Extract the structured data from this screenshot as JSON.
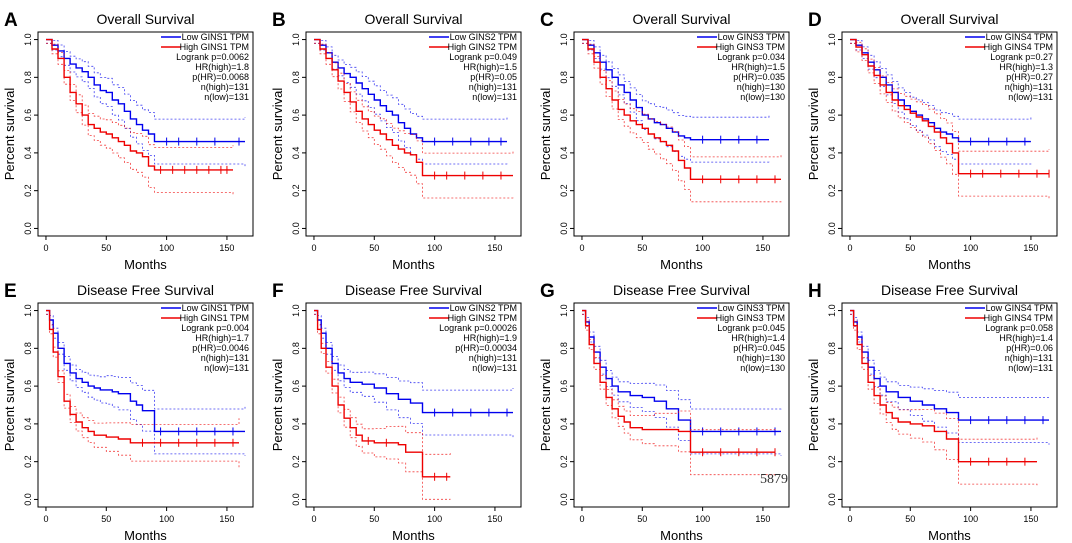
{
  "figure": {
    "watermark": "5879",
    "colors": {
      "low": "#0000ee",
      "high": "#ee0000",
      "axis": "#000000"
    }
  },
  "chart_data": [
    {
      "panel": "A",
      "type": "line",
      "title": "Overall Survival",
      "xlabel": "Months",
      "ylabel": "Percent survival",
      "xlim": [
        0,
        165
      ],
      "ylim": [
        0,
        1.0
      ],
      "xticks": [
        0,
        50,
        100,
        150
      ],
      "yticks": [
        0,
        0.2,
        0.4,
        0.6,
        0.8,
        1.0
      ],
      "legend": [
        "Low GINS1 TPM",
        "High GINS1 TPM"
      ],
      "stats": [
        "Logrank p=0.0062",
        "HR(high)=1.8",
        "p(HR)=0.0068",
        "n(high)=131",
        "n(low)=131"
      ],
      "series": [
        {
          "name": "Low GINS1 TPM",
          "color": "low",
          "x": [
            0,
            5,
            10,
            15,
            20,
            25,
            30,
            35,
            40,
            45,
            50,
            55,
            60,
            65,
            70,
            75,
            80,
            85,
            90,
            165
          ],
          "y": [
            1.0,
            0.97,
            0.94,
            0.9,
            0.87,
            0.85,
            0.83,
            0.8,
            0.76,
            0.73,
            0.72,
            0.68,
            0.66,
            0.62,
            0.58,
            0.55,
            0.52,
            0.5,
            0.46,
            0.46
          ],
          "censor": [
            100,
            110,
            125,
            140,
            160
          ]
        },
        {
          "name": "High GINS1 TPM",
          "color": "high",
          "x": [
            0,
            5,
            10,
            15,
            20,
            25,
            30,
            35,
            40,
            45,
            50,
            55,
            60,
            65,
            70,
            75,
            80,
            85,
            90,
            155
          ],
          "y": [
            1.0,
            0.95,
            0.9,
            0.8,
            0.72,
            0.66,
            0.6,
            0.55,
            0.53,
            0.51,
            0.5,
            0.48,
            0.46,
            0.44,
            0.41,
            0.4,
            0.38,
            0.33,
            0.31,
            0.31
          ],
          "censor": [
            95,
            105,
            115,
            125,
            135,
            145,
            150
          ]
        }
      ]
    },
    {
      "panel": "B",
      "type": "line",
      "title": "Overall Survival",
      "xlabel": "Months",
      "ylabel": "Percent survival",
      "xlim": [
        0,
        165
      ],
      "ylim": [
        0,
        1.0
      ],
      "xticks": [
        0,
        50,
        100,
        150
      ],
      "yticks": [
        0,
        0.2,
        0.4,
        0.6,
        0.8,
        1.0
      ],
      "legend": [
        "Low GINS2 TPM",
        "High GINS2 TPM"
      ],
      "stats": [
        "Logrank p=0.049",
        "HR(high)=1.5",
        "p(HR)=0.05",
        "n(high)=131",
        "n(low)=131"
      ],
      "series": [
        {
          "name": "Low GINS2 TPM",
          "color": "low",
          "x": [
            0,
            5,
            10,
            15,
            20,
            25,
            30,
            35,
            40,
            45,
            50,
            55,
            60,
            65,
            70,
            75,
            80,
            85,
            90,
            160
          ],
          "y": [
            1.0,
            0.97,
            0.93,
            0.88,
            0.85,
            0.82,
            0.8,
            0.77,
            0.74,
            0.71,
            0.68,
            0.65,
            0.62,
            0.6,
            0.56,
            0.53,
            0.5,
            0.48,
            0.46,
            0.46
          ],
          "censor": [
            100,
            115,
            130,
            145,
            155
          ]
        },
        {
          "name": "High GINS2 TPM",
          "color": "high",
          "x": [
            0,
            5,
            10,
            15,
            20,
            25,
            30,
            35,
            40,
            45,
            50,
            55,
            60,
            65,
            70,
            75,
            80,
            85,
            90,
            165
          ],
          "y": [
            1.0,
            0.95,
            0.9,
            0.84,
            0.78,
            0.72,
            0.67,
            0.62,
            0.58,
            0.55,
            0.52,
            0.5,
            0.47,
            0.44,
            0.42,
            0.4,
            0.39,
            0.35,
            0.28,
            0.28
          ],
          "censor": [
            100,
            110,
            125,
            140,
            155
          ]
        }
      ]
    },
    {
      "panel": "C",
      "type": "line",
      "title": "Overall Survival",
      "xlabel": "Months",
      "ylabel": "Percent survival",
      "xlim": [
        0,
        165
      ],
      "ylim": [
        0,
        1.0
      ],
      "xticks": [
        0,
        50,
        100,
        150
      ],
      "yticks": [
        0,
        0.2,
        0.4,
        0.6,
        0.8,
        1.0
      ],
      "legend": [
        "Low GINS3 TPM",
        "High GINS3 TPM"
      ],
      "stats": [
        "Logrank p=0.034",
        "HR(high)=1.5",
        "p(HR)=0.035",
        "n(high)=130",
        "n(low)=130"
      ],
      "series": [
        {
          "name": "Low GINS3 TPM",
          "color": "low",
          "x": [
            0,
            5,
            10,
            15,
            20,
            25,
            30,
            35,
            40,
            45,
            50,
            55,
            60,
            65,
            70,
            75,
            80,
            85,
            90,
            155
          ],
          "y": [
            1.0,
            0.97,
            0.93,
            0.88,
            0.84,
            0.8,
            0.76,
            0.72,
            0.68,
            0.64,
            0.6,
            0.58,
            0.56,
            0.55,
            0.53,
            0.51,
            0.49,
            0.48,
            0.47,
            0.47
          ],
          "censor": [
            100,
            115,
            130,
            145
          ]
        },
        {
          "name": "High GINS3 TPM",
          "color": "high",
          "x": [
            0,
            5,
            10,
            15,
            20,
            25,
            30,
            35,
            40,
            45,
            50,
            55,
            60,
            65,
            70,
            75,
            80,
            85,
            90,
            165
          ],
          "y": [
            1.0,
            0.95,
            0.88,
            0.8,
            0.74,
            0.68,
            0.63,
            0.6,
            0.57,
            0.55,
            0.53,
            0.5,
            0.48,
            0.46,
            0.44,
            0.41,
            0.36,
            0.32,
            0.26,
            0.26
          ],
          "censor": [
            100,
            115,
            130,
            145,
            160
          ]
        }
      ]
    },
    {
      "panel": "D",
      "type": "line",
      "title": "Overall Survival",
      "xlabel": "Months",
      "ylabel": "Percent survival",
      "xlim": [
        0,
        165
      ],
      "ylim": [
        0,
        1.0
      ],
      "xticks": [
        0,
        50,
        100,
        150
      ],
      "yticks": [
        0,
        0.2,
        0.4,
        0.6,
        0.8,
        1.0
      ],
      "legend": [
        "Low GINS4 TPM",
        "High GINS4 TPM"
      ],
      "stats": [
        "Logrank p=0.27",
        "HR(high)=1.3",
        "p(HR)=0.27",
        "n(high)=131",
        "n(low)=131"
      ],
      "series": [
        {
          "name": "Low GINS4 TPM",
          "color": "low",
          "x": [
            0,
            5,
            10,
            15,
            20,
            25,
            30,
            35,
            40,
            45,
            50,
            55,
            60,
            65,
            70,
            75,
            80,
            85,
            90,
            150
          ],
          "y": [
            1.0,
            0.97,
            0.93,
            0.88,
            0.84,
            0.8,
            0.76,
            0.72,
            0.68,
            0.65,
            0.62,
            0.6,
            0.58,
            0.56,
            0.53,
            0.51,
            0.5,
            0.48,
            0.46,
            0.46
          ],
          "censor": [
            100,
            115,
            130,
            145
          ]
        },
        {
          "name": "High GINS4 TPM",
          "color": "high",
          "x": [
            0,
            5,
            10,
            15,
            20,
            25,
            30,
            35,
            40,
            45,
            50,
            55,
            60,
            65,
            70,
            75,
            80,
            85,
            90,
            165
          ],
          "y": [
            1.0,
            0.96,
            0.92,
            0.86,
            0.81,
            0.76,
            0.72,
            0.68,
            0.65,
            0.63,
            0.61,
            0.59,
            0.57,
            0.54,
            0.51,
            0.48,
            0.45,
            0.4,
            0.29,
            0.29
          ],
          "censor": [
            100,
            110,
            125,
            140,
            155,
            165
          ]
        }
      ]
    },
    {
      "panel": "E",
      "type": "line",
      "title": "Disease Free Survival",
      "xlabel": "Months",
      "ylabel": "Percent survival",
      "xlim": [
        0,
        165
      ],
      "ylim": [
        0,
        1.0
      ],
      "xticks": [
        0,
        50,
        100,
        150
      ],
      "yticks": [
        0,
        0.2,
        0.4,
        0.6,
        0.8,
        1.0
      ],
      "legend": [
        "Low GINS1 TPM",
        "High GINS1 TPM"
      ],
      "stats": [
        "Logrank p=0.004",
        "HR(high)=1.7",
        "p(HR)=0.0046",
        "n(high)=131",
        "n(low)=131"
      ],
      "series": [
        {
          "name": "Low GINS1 TPM",
          "color": "low",
          "x": [
            0,
            3,
            6,
            10,
            15,
            20,
            25,
            30,
            35,
            40,
            45,
            50,
            55,
            60,
            70,
            75,
            80,
            90,
            165
          ],
          "y": [
            1.0,
            0.95,
            0.88,
            0.8,
            0.72,
            0.67,
            0.64,
            0.62,
            0.6,
            0.59,
            0.58,
            0.58,
            0.57,
            0.56,
            0.52,
            0.5,
            0.47,
            0.36,
            0.36
          ],
          "censor": [
            95,
            110,
            125,
            140,
            155
          ]
        },
        {
          "name": "High GINS1 TPM",
          "color": "high",
          "x": [
            0,
            3,
            6,
            10,
            15,
            20,
            25,
            30,
            35,
            40,
            50,
            60,
            70,
            160
          ],
          "y": [
            1.0,
            0.9,
            0.78,
            0.65,
            0.52,
            0.45,
            0.41,
            0.38,
            0.36,
            0.34,
            0.33,
            0.32,
            0.3,
            0.3
          ],
          "censor": [
            80,
            95,
            110,
            125,
            140,
            155
          ]
        }
      ]
    },
    {
      "panel": "F",
      "type": "line",
      "title": "Disease Free Survival",
      "xlabel": "Months",
      "ylabel": "Percent survival",
      "xlim": [
        0,
        165
      ],
      "ylim": [
        0,
        1.0
      ],
      "xticks": [
        0,
        50,
        100,
        150
      ],
      "yticks": [
        0,
        0.2,
        0.4,
        0.6,
        0.8,
        1.0
      ],
      "legend": [
        "Low GINS2 TPM",
        "High GINS2 TPM"
      ],
      "stats": [
        "Logrank p=0.00026",
        "HR(high)=1.9",
        "p(HR)=0.00034",
        "n(high)=131",
        "n(low)=131"
      ],
      "series": [
        {
          "name": "Low GINS2 TPM",
          "color": "low",
          "x": [
            0,
            3,
            6,
            10,
            15,
            20,
            25,
            30,
            40,
            50,
            60,
            70,
            80,
            90,
            165
          ],
          "y": [
            1.0,
            0.95,
            0.88,
            0.8,
            0.72,
            0.67,
            0.64,
            0.62,
            0.61,
            0.59,
            0.56,
            0.53,
            0.51,
            0.46,
            0.46
          ],
          "censor": [
            100,
            115,
            130,
            145,
            160
          ]
        },
        {
          "name": "High GINS2 TPM",
          "color": "high",
          "x": [
            0,
            3,
            6,
            10,
            15,
            20,
            25,
            30,
            35,
            40,
            50,
            60,
            70,
            76,
            90,
            113
          ],
          "y": [
            1.0,
            0.9,
            0.8,
            0.7,
            0.6,
            0.5,
            0.43,
            0.38,
            0.34,
            0.31,
            0.3,
            0.3,
            0.29,
            0.25,
            0.12,
            0.12
          ],
          "censor": [
            45,
            60,
            100,
            110
          ]
        }
      ]
    },
    {
      "panel": "G",
      "type": "line",
      "title": "Disease Free Survival",
      "xlabel": "Months",
      "ylabel": "Percent survival",
      "xlim": [
        0,
        165
      ],
      "ylim": [
        0,
        1.0
      ],
      "xticks": [
        0,
        50,
        100,
        150
      ],
      "yticks": [
        0,
        0.2,
        0.4,
        0.6,
        0.8,
        1.0
      ],
      "legend": [
        "Low GINS3 TPM",
        "High GINS3 TPM"
      ],
      "stats": [
        "Logrank p=0.045",
        "HR(high)=1.4",
        "p(HR)=0.045",
        "n(high)=130",
        "n(low)=130"
      ],
      "series": [
        {
          "name": "Low GINS3 TPM",
          "color": "low",
          "x": [
            0,
            3,
            6,
            10,
            15,
            20,
            25,
            30,
            40,
            50,
            60,
            70,
            80,
            90,
            165
          ],
          "y": [
            1.0,
            0.94,
            0.86,
            0.78,
            0.7,
            0.64,
            0.6,
            0.57,
            0.55,
            0.54,
            0.52,
            0.48,
            0.42,
            0.36,
            0.36
          ],
          "censor": [
            100,
            115,
            130,
            145,
            160
          ]
        },
        {
          "name": "High GINS3 TPM",
          "color": "high",
          "x": [
            0,
            3,
            6,
            10,
            15,
            20,
            25,
            30,
            35,
            40,
            50,
            60,
            80,
            90,
            160
          ],
          "y": [
            1.0,
            0.92,
            0.82,
            0.72,
            0.62,
            0.54,
            0.48,
            0.44,
            0.41,
            0.38,
            0.37,
            0.37,
            0.36,
            0.25,
            0.25
          ],
          "censor": [
            100,
            115,
            130,
            145,
            160
          ]
        }
      ]
    },
    {
      "panel": "H",
      "type": "line",
      "title": "Disease Free Survival",
      "xlabel": "Months",
      "ylabel": "Percent survival",
      "xlim": [
        0,
        165
      ],
      "ylim": [
        0,
        1.0
      ],
      "xticks": [
        0,
        50,
        100,
        150
      ],
      "yticks": [
        0,
        0.2,
        0.4,
        0.6,
        0.8,
        1.0
      ],
      "legend": [
        "Low GINS4 TPM",
        "High GINS4 TPM"
      ],
      "stats": [
        "Logrank p=0.058",
        "HR(high)=1.4",
        "p(HR)=0.06",
        "n(high)=131",
        "n(low)=131"
      ],
      "series": [
        {
          "name": "Low GINS4 TPM",
          "color": "low",
          "x": [
            0,
            3,
            6,
            10,
            15,
            20,
            25,
            30,
            40,
            50,
            60,
            70,
            80,
            90,
            165
          ],
          "y": [
            1.0,
            0.94,
            0.86,
            0.78,
            0.7,
            0.64,
            0.6,
            0.57,
            0.54,
            0.52,
            0.5,
            0.48,
            0.46,
            0.42,
            0.42
          ],
          "censor": [
            100,
            115,
            130,
            145,
            160
          ]
        },
        {
          "name": "High GINS4 TPM",
          "color": "high",
          "x": [
            0,
            3,
            6,
            10,
            15,
            20,
            25,
            30,
            35,
            40,
            50,
            60,
            70,
            80,
            90,
            155
          ],
          "y": [
            1.0,
            0.92,
            0.82,
            0.72,
            0.62,
            0.55,
            0.5,
            0.46,
            0.43,
            0.41,
            0.4,
            0.39,
            0.36,
            0.32,
            0.2,
            0.2
          ],
          "censor": [
            100,
            115,
            130,
            145
          ]
        }
      ]
    }
  ]
}
